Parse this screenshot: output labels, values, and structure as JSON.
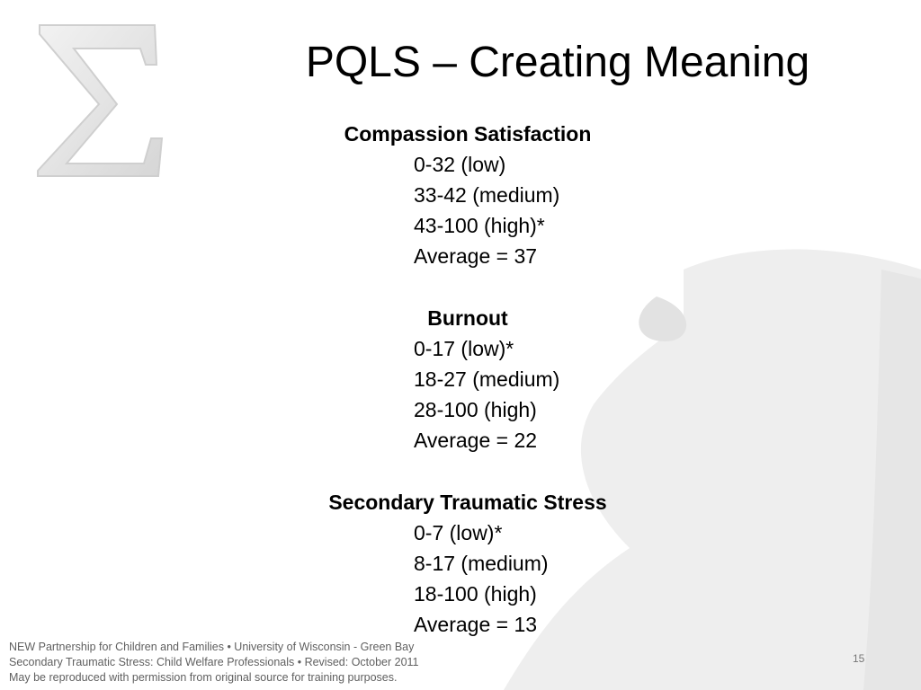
{
  "slide": {
    "title": "PQLS – Creating Meaning",
    "sections": [
      {
        "heading": "Compassion Satisfaction",
        "items": [
          "0-32 (low)",
          "33-42 (medium)",
          "43-100 (high)*",
          "Average = 37"
        ]
      },
      {
        "heading": "Burnout",
        "items": [
          "0-17 (low)*",
          "18-27 (medium)",
          "28-100 (high)",
          "Average = 22"
        ]
      },
      {
        "heading": "Secondary Traumatic Stress",
        "items": [
          "0-7 (low)*",
          "8-17 (medium)",
          "18-100 (high)",
          "Average = 13"
        ]
      }
    ],
    "footer": {
      "line1": "NEW Partnership for Children and Families • University of Wisconsin - Green Bay",
      "line2": "Secondary Traumatic Stress: Child Welfare Professionals • Revised: October 2011",
      "line3": "May be reproduced with permission from original source for training purposes."
    },
    "page_number": "15"
  },
  "colors": {
    "background_shape": "#ededed",
    "sigma_fill": "#e4e4e4",
    "text": "#000000",
    "footer_text": "#606060"
  }
}
